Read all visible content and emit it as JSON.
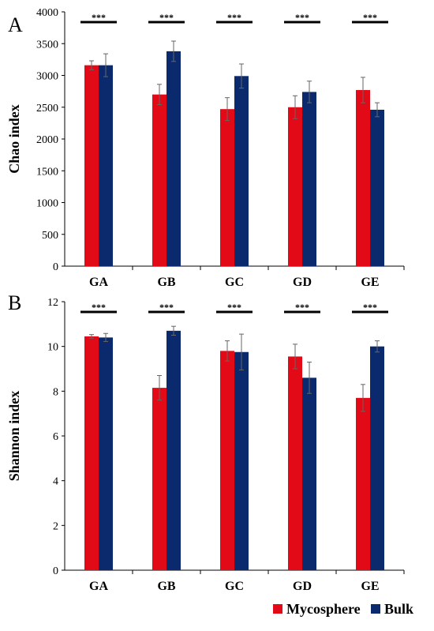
{
  "chart_data": [
    {
      "panel": "A",
      "type": "bar",
      "categories": [
        "GA",
        "GB",
        "GC",
        "GD",
        "GE"
      ],
      "ylabel": "Chao index",
      "ylim": [
        0,
        4000
      ],
      "yticks": [
        0,
        500,
        1000,
        1500,
        2000,
        2500,
        3000,
        3500,
        4000
      ],
      "grid": false,
      "significance": [
        "***",
        "***",
        "***",
        "***",
        "***"
      ],
      "series": [
        {
          "name": "Mycosphere",
          "color": "#e30a17",
          "values": [
            3160,
            2700,
            2470,
            2500,
            2770
          ],
          "errors": [
            70,
            160,
            180,
            180,
            200
          ]
        },
        {
          "name": "Bulk",
          "color": "#0b2a6e",
          "values": [
            3160,
            3380,
            2990,
            2740,
            2460
          ],
          "errors": [
            180,
            160,
            190,
            170,
            110
          ]
        }
      ]
    },
    {
      "panel": "B",
      "type": "bar",
      "categories": [
        "GA",
        "GB",
        "GC",
        "GD",
        "GE"
      ],
      "ylabel": "Shannon index",
      "ylim": [
        0,
        12
      ],
      "yticks": [
        0,
        2,
        4,
        6,
        8,
        10,
        12
      ],
      "grid": false,
      "significance": [
        "***",
        "***",
        "***",
        "***",
        "***"
      ],
      "series": [
        {
          "name": "Mycosphere",
          "color": "#e30a17",
          "values": [
            10.45,
            8.15,
            9.8,
            9.55,
            7.7
          ],
          "errors": [
            0.08,
            0.55,
            0.45,
            0.55,
            0.6
          ]
        },
        {
          "name": "Bulk",
          "color": "#0b2a6e",
          "values": [
            10.4,
            10.7,
            9.75,
            8.6,
            10.0
          ],
          "errors": [
            0.18,
            0.2,
            0.8,
            0.7,
            0.25
          ]
        }
      ]
    }
  ],
  "legend": {
    "placement": "bottom-right",
    "items": [
      {
        "label": "Mycosphere",
        "color": "#e30a17"
      },
      {
        "label": "Bulk",
        "color": "#0b2a6e"
      }
    ]
  }
}
